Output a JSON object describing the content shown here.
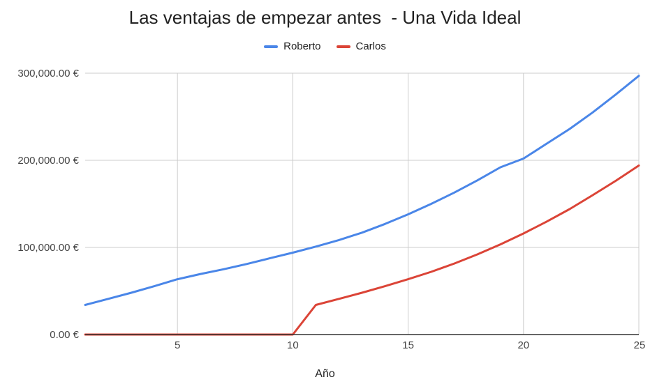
{
  "chart_data": {
    "type": "line",
    "title": "Las ventajas de empezar antes  - Una Vida Ideal",
    "xlabel": "Año",
    "ylabel": "",
    "xlim": [
      1,
      25
    ],
    "ylim": [
      0,
      300000
    ],
    "x_ticks": [
      5,
      10,
      15,
      20,
      25
    ],
    "y_ticks": [
      0,
      100000,
      200000,
      300000
    ],
    "y_tick_labels": [
      "0.00 €",
      "100,000.00 €",
      "200,000.00 €",
      "300,000.00 €"
    ],
    "grid": true,
    "legend": "top-center",
    "x": [
      1,
      2,
      3,
      4,
      5,
      6,
      7,
      8,
      9,
      10,
      11,
      12,
      13,
      14,
      15,
      16,
      17,
      18,
      19,
      20,
      21,
      22,
      23,
      24,
      25
    ],
    "series": [
      {
        "name": "Roberto",
        "color": "#4a86e8",
        "values": [
          34000,
          41000,
          48000,
          55500,
          63500,
          69500,
          75000,
          81000,
          87500,
          94000,
          101000,
          108500,
          117000,
          127000,
          138000,
          150000,
          163000,
          177000,
          192000,
          202000,
          219000,
          236000,
          255000,
          275500,
          297000
        ]
      },
      {
        "name": "Carlos",
        "color": "#db4437",
        "values": [
          0,
          0,
          0,
          0,
          0,
          0,
          0,
          0,
          0,
          0,
          34000,
          41000,
          48000,
          55500,
          63500,
          72000,
          81500,
          92000,
          103500,
          116000,
          129500,
          144000,
          160000,
          176500,
          194000
        ]
      }
    ]
  }
}
